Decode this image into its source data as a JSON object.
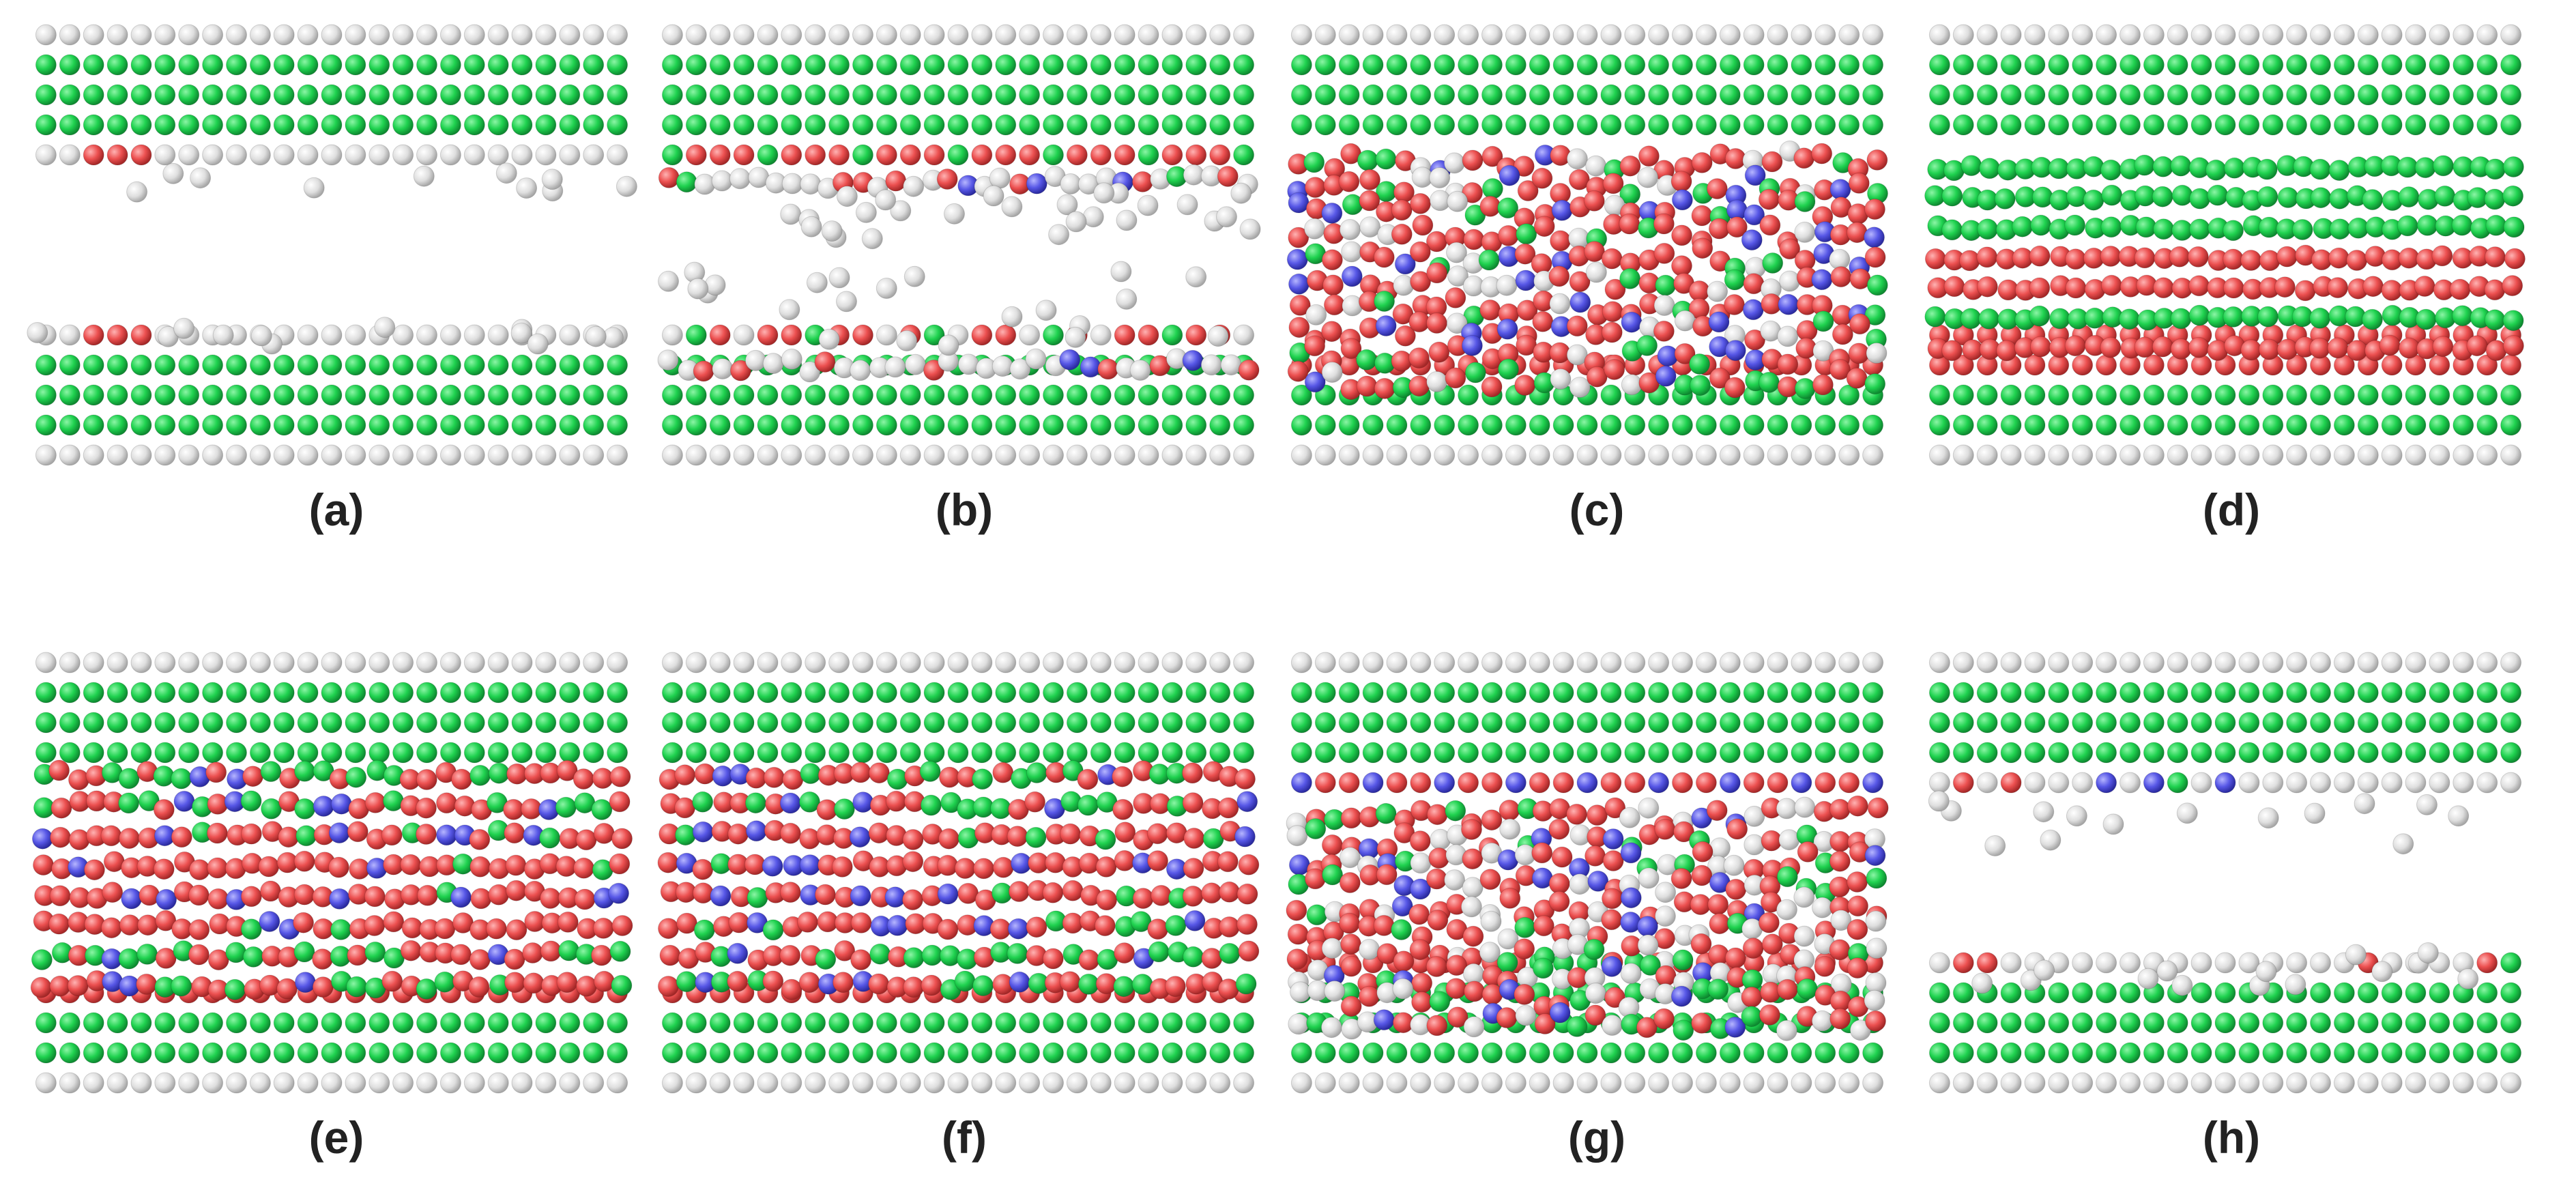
{
  "figure": {
    "panels": [
      {
        "id": "a",
        "label": "(a)",
        "layout": "gap",
        "atoms_placed": "few",
        "colors": [
          "white",
          "green",
          "red"
        ]
      },
      {
        "id": "b",
        "label": "(b)",
        "layout": "gap",
        "atoms_placed": "partial",
        "colors": [
          "white",
          "green",
          "red",
          "blue"
        ]
      },
      {
        "id": "c",
        "label": "(c)",
        "layout": "disordered",
        "colors": [
          "white",
          "green",
          "red",
          "blue"
        ]
      },
      {
        "id": "d",
        "label": "(d)",
        "layout": "ordered-layers",
        "colors": [
          "white",
          "green",
          "red"
        ]
      },
      {
        "id": "e",
        "label": "(e)",
        "layout": "mixed-layers",
        "colors": [
          "white",
          "green",
          "red",
          "blue"
        ]
      },
      {
        "id": "f",
        "label": "(f)",
        "layout": "mixed-layers",
        "colors": [
          "white",
          "green",
          "red",
          "blue"
        ]
      },
      {
        "id": "g",
        "label": "(g)",
        "layout": "disordered",
        "colors": [
          "white",
          "green",
          "red",
          "blue"
        ]
      },
      {
        "id": "h",
        "label": "(h)",
        "layout": "gap",
        "atoms_placed": "few",
        "colors": [
          "white",
          "green",
          "red",
          "blue"
        ]
      }
    ],
    "atom_colors": {
      "white": "#e6e6e6",
      "green": "#22cc55",
      "red": "#ee5555",
      "blue": "#5a5ae0"
    }
  }
}
